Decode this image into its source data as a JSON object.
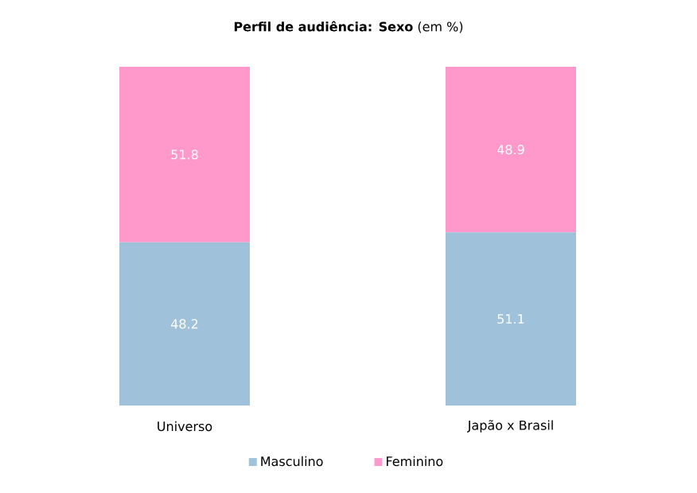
{
  "chart_data": {
    "type": "bar",
    "stacked": true,
    "title": "**Perfil de audiência: Sexo** (em %)",
    "categories": [
      "Universo",
      "Japão x Brasil"
    ],
    "series": [
      {
        "name": "Masculino",
        "color": "#9fc1da",
        "values": [
          48.2,
          51.1
        ]
      },
      {
        "name": "Feminino",
        "color": "#ff99cc",
        "values": [
          51.8,
          48.9
        ]
      }
    ],
    "data_labels": true,
    "legend": "bottom"
  }
}
